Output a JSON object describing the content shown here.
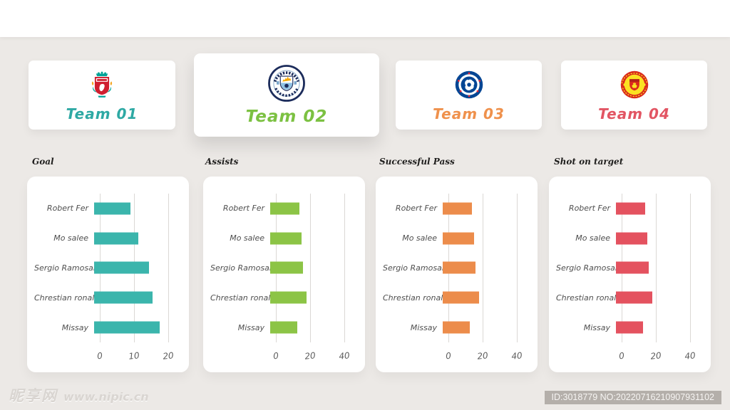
{
  "teams": [
    {
      "label": "Team 01",
      "color": "#2EA9A4",
      "icon": "liverpool-crest",
      "selected": false
    },
    {
      "label": "Team 02",
      "color": "#7CC142",
      "icon": "manchester-city-crest",
      "selected": true
    },
    {
      "label": "Team 03",
      "color": "#EF914C",
      "icon": "chelsea-crest",
      "selected": false
    },
    {
      "label": "Team 04",
      "color": "#E25563",
      "icon": "manchester-united-crest",
      "selected": false
    }
  ],
  "chart_data": [
    {
      "type": "bar",
      "orientation": "horizontal",
      "title": "Goal",
      "categories": [
        "Robert Fer",
        "Mo salee",
        "Sergio Ramosan",
        "Chrestian ronald",
        "Missay"
      ],
      "values": [
        10,
        12,
        15,
        16,
        18
      ],
      "xticks": [
        0,
        10,
        20
      ],
      "xlim": [
        0,
        22.8
      ],
      "bar_color": "#3BB5AC",
      "grid": true,
      "legend": false
    },
    {
      "type": "bar",
      "orientation": "horizontal",
      "title": "Assists",
      "categories": [
        "Robert Fer",
        "Mo salee",
        "Sergio Ramosan",
        "Chrestian ronald",
        "Missay"
      ],
      "values": [
        16,
        17,
        18,
        20,
        15
      ],
      "xticks": [
        0,
        20,
        40
      ],
      "xlim": [
        0,
        45.6
      ],
      "bar_color": "#8CC446",
      "grid": true,
      "legend": false
    },
    {
      "type": "bar",
      "orientation": "horizontal",
      "title": "Successful Pass",
      "categories": [
        "Robert Fer",
        "Mo salee",
        "Sergio Ramosan",
        "Chrestian ronald",
        "Missay"
      ],
      "values": [
        16,
        17,
        18,
        20,
        15
      ],
      "xticks": [
        0,
        20,
        40
      ],
      "xlim": [
        0,
        45.6
      ],
      "bar_color": "#EC8C4B",
      "grid": true,
      "legend": false
    },
    {
      "type": "bar",
      "orientation": "horizontal",
      "title": "Shot on target",
      "categories": [
        "Robert Fer",
        "Mo salee",
        "Sergio Ramosan",
        "Chrestian ronald",
        "Missay"
      ],
      "values": [
        16,
        17,
        18,
        20,
        15
      ],
      "xticks": [
        0,
        20,
        40
      ],
      "xlim": [
        0,
        45.6
      ],
      "bar_color": "#E4525F",
      "grid": true,
      "legend": false
    }
  ],
  "footer": {
    "watermark_site_name": "昵享网",
    "watermark_url": "www.nipic.cn",
    "id_badge": "ID:3018779 NO:20220716210907931102"
  }
}
